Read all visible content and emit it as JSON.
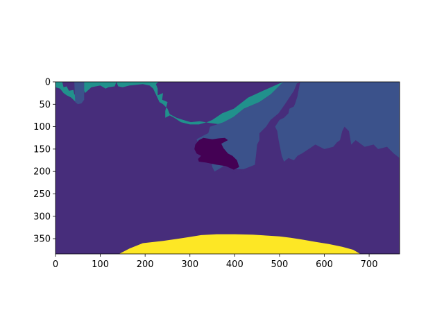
{
  "chart_data": {
    "type": "heatmap",
    "title": "",
    "xlabel": "",
    "ylabel": "",
    "xlim": [
      0,
      768
    ],
    "ylim": [
      384,
      0
    ],
    "y_axis_inverted": true,
    "grid": false,
    "colormap": "viridis",
    "x_ticks": [
      "0",
      "100",
      "200",
      "300",
      "400",
      "500",
      "600",
      "700"
    ],
    "y_ticks": [
      "0",
      "50",
      "100",
      "150",
      "200",
      "250",
      "300",
      "350"
    ],
    "x_tick_values": [
      0,
      100,
      200,
      300,
      400,
      500,
      600,
      700
    ],
    "y_tick_values": [
      0,
      50,
      100,
      150,
      200,
      250,
      300,
      350
    ],
    "classes": [
      {
        "value": 0,
        "color": "#440154"
      },
      {
        "value": 1,
        "color": "#472d7b"
      },
      {
        "value": 2,
        "color": "#3b528b"
      },
      {
        "value": 3,
        "color": "#21918c"
      },
      {
        "value": 4,
        "color": "#fde725"
      }
    ],
    "regions": [
      {
        "class": 1,
        "polygon": [
          [
            0,
            0
          ],
          [
            768,
            0
          ],
          [
            768,
            384
          ],
          [
            0,
            384
          ]
        ]
      },
      {
        "class": 3,
        "polygon": [
          [
            0,
            0
          ],
          [
            15,
            0
          ],
          [
            18,
            12
          ],
          [
            25,
            10
          ],
          [
            30,
            20
          ],
          [
            40,
            18
          ],
          [
            42,
            28
          ],
          [
            50,
            30
          ],
          [
            50,
            45
          ],
          [
            48,
            48
          ],
          [
            40,
            40
          ],
          [
            35,
            35
          ],
          [
            25,
            30
          ],
          [
            18,
            25
          ],
          [
            10,
            15
          ],
          [
            0,
            12
          ]
        ]
      },
      {
        "class": 2,
        "polygon": [
          [
            42,
            0
          ],
          [
            64,
            0
          ],
          [
            64,
            40
          ],
          [
            58,
            48
          ],
          [
            50,
            50
          ],
          [
            44,
            45
          ]
        ]
      },
      {
        "class": 3,
        "polygon": [
          [
            64,
            0
          ],
          [
            136,
            0
          ],
          [
            132,
            10
          ],
          [
            118,
            12
          ],
          [
            112,
            15
          ],
          [
            100,
            8
          ],
          [
            90,
            10
          ],
          [
            80,
            12
          ],
          [
            66,
            25
          ],
          [
            64,
            20
          ]
        ]
      },
      {
        "class": 3,
        "polygon": [
          [
            136,
            0
          ],
          [
            230,
            0
          ],
          [
            224,
            5
          ],
          [
            228,
            15
          ],
          [
            228,
            30
          ],
          [
            240,
            25
          ],
          [
            238,
            40
          ],
          [
            250,
            45
          ],
          [
            245,
            65
          ],
          [
            245,
            80
          ],
          [
            255,
            75
          ],
          [
            265,
            80
          ],
          [
            280,
            90
          ],
          [
            300,
            95
          ],
          [
            320,
            95
          ],
          [
            338,
            90
          ],
          [
            350,
            85
          ],
          [
            372,
            70
          ],
          [
            398,
            60
          ],
          [
            430,
            35
          ],
          [
            452,
            25
          ],
          [
            474,
            15
          ],
          [
            508,
            0
          ],
          [
            546,
            0
          ],
          [
            522,
            8
          ],
          [
            512,
            12
          ],
          [
            500,
            20
          ],
          [
            480,
            28
          ],
          [
            455,
            45
          ],
          [
            420,
            60
          ],
          [
            398,
            78
          ],
          [
            370,
            95
          ],
          [
            345,
            92
          ],
          [
            322,
            88
          ],
          [
            302,
            90
          ],
          [
            285,
            85
          ],
          [
            270,
            80
          ],
          [
            255,
            72
          ],
          [
            250,
            60
          ],
          [
            240,
            50
          ],
          [
            232,
            45
          ],
          [
            225,
            30
          ],
          [
            218,
            15
          ],
          [
            210,
            8
          ],
          [
            195,
            5
          ],
          [
            165,
            8
          ],
          [
            150,
            12
          ],
          [
            140,
            10
          ]
        ]
      },
      {
        "class": 2,
        "polygon": [
          [
            546,
            0
          ],
          [
            768,
            0
          ],
          [
            768,
            170
          ],
          [
            755,
            160
          ],
          [
            740,
            145
          ],
          [
            720,
            150
          ],
          [
            710,
            140
          ],
          [
            690,
            145
          ],
          [
            670,
            130
          ],
          [
            660,
            140
          ],
          [
            655,
            110
          ],
          [
            645,
            100
          ],
          [
            640,
            110
          ],
          [
            635,
            130
          ],
          [
            628,
            135
          ],
          [
            620,
            145
          ],
          [
            600,
            150
          ],
          [
            580,
            140
          ],
          [
            565,
            150
          ],
          [
            550,
            160
          ],
          [
            540,
            165
          ],
          [
            532,
            175
          ],
          [
            520,
            170
          ],
          [
            510,
            178
          ],
          [
            505,
            165
          ],
          [
            502,
            150
          ],
          [
            498,
            130
          ],
          [
            495,
            110
          ],
          [
            490,
            100
          ],
          [
            500,
            85
          ],
          [
            510,
            80
          ],
          [
            520,
            70
          ],
          [
            522,
            60
          ],
          [
            532,
            55
          ],
          [
            535,
            48
          ],
          [
            540,
            32
          ]
        ]
      },
      {
        "class": 2,
        "polygon": [
          [
            508,
            0
          ],
          [
            540,
            0
          ],
          [
            532,
            20
          ],
          [
            522,
            35
          ],
          [
            512,
            50
          ],
          [
            498,
            70
          ],
          [
            480,
            85
          ],
          [
            470,
            100
          ],
          [
            460,
            110
          ],
          [
            450,
            120
          ],
          [
            438,
            128
          ],
          [
            420,
            140
          ],
          [
            400,
            162
          ],
          [
            390,
            175
          ],
          [
            372,
            190
          ],
          [
            355,
            200
          ],
          [
            350,
            190
          ],
          [
            345,
            160
          ],
          [
            330,
            150
          ],
          [
            320,
            140
          ],
          [
            315,
            128
          ],
          [
            330,
            120
          ],
          [
            350,
            110
          ],
          [
            360,
            100
          ],
          [
            372,
            92
          ],
          [
            398,
            78
          ],
          [
            420,
            60
          ],
          [
            455,
            45
          ],
          [
            480,
            28
          ]
        ]
      },
      {
        "class": 2,
        "polygon": [
          [
            398,
            78
          ],
          [
            410,
            72
          ],
          [
            428,
            70
          ],
          [
            440,
            75
          ],
          [
            450,
            85
          ],
          [
            455,
            100
          ],
          [
            455,
            130
          ],
          [
            450,
            140
          ],
          [
            448,
            160
          ],
          [
            445,
            185
          ],
          [
            420,
            195
          ],
          [
            405,
            195
          ],
          [
            390,
            180
          ],
          [
            380,
            165
          ],
          [
            365,
            150
          ],
          [
            350,
            140
          ],
          [
            340,
            118
          ],
          [
            345,
            100
          ],
          [
            360,
            95
          ],
          [
            375,
            90
          ]
        ]
      },
      {
        "class": 1,
        "polygon": [
          [
            405,
            195
          ],
          [
            414,
            196
          ],
          [
            420,
            200
          ],
          [
            408,
            205
          ],
          [
            395,
            200
          ]
        ]
      },
      {
        "class": 0,
        "polygon": [
          [
            320,
            130
          ],
          [
            330,
            125
          ],
          [
            350,
            128
          ],
          [
            365,
            126
          ],
          [
            378,
            125
          ],
          [
            385,
            130
          ],
          [
            370,
            138
          ],
          [
            375,
            148
          ],
          [
            385,
            160
          ],
          [
            395,
            165
          ],
          [
            405,
            175
          ],
          [
            410,
            190
          ],
          [
            398,
            196
          ],
          [
            380,
            188
          ],
          [
            360,
            185
          ],
          [
            335,
            180
          ],
          [
            320,
            178
          ],
          [
            318,
            172
          ],
          [
            325,
            165
          ],
          [
            315,
            160
          ],
          [
            310,
            150
          ],
          [
            312,
            140
          ]
        ]
      },
      {
        "class": 4,
        "polygon": [
          [
            142,
            384
          ],
          [
            165,
            372
          ],
          [
            195,
            360
          ],
          [
            240,
            355
          ],
          [
            275,
            350
          ],
          [
            300,
            346
          ],
          [
            325,
            342
          ],
          [
            360,
            340
          ],
          [
            400,
            340
          ],
          [
            440,
            341
          ],
          [
            470,
            343
          ],
          [
            500,
            345
          ],
          [
            525,
            348
          ],
          [
            550,
            352
          ],
          [
            580,
            357
          ],
          [
            610,
            362
          ],
          [
            640,
            368
          ],
          [
            665,
            375
          ],
          [
            680,
            384
          ]
        ]
      }
    ]
  }
}
